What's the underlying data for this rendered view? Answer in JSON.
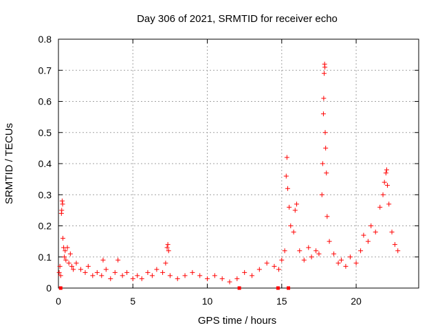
{
  "chart_data": {
    "type": "scatter",
    "title": "Day 306 of 2021, SRMTID for receiver echo",
    "xlabel": "GPS time / hours",
    "ylabel": "SRMTID / TECUs",
    "xlim": [
      0,
      24.2
    ],
    "ylim": [
      0,
      0.8
    ],
    "x_ticks": [
      0,
      5,
      10,
      15,
      20
    ],
    "y_ticks": [
      0,
      0.1,
      0.2,
      0.3,
      0.4,
      0.5,
      0.6,
      0.7,
      0.8
    ],
    "x_tick_labels": [
      "0",
      "5",
      "10",
      "15",
      "20"
    ],
    "y_tick_labels": [
      "0",
      "0.1",
      "0.2",
      "0.3",
      "0.4",
      "0.5",
      "0.6",
      "0.7",
      "0.8"
    ],
    "grid": true,
    "marker": "+",
    "marker_color": "#ff0000",
    "series": [
      {
        "name": "SRMTID",
        "points": [
          [
            0.05,
            0.05
          ],
          [
            0.1,
            0.07
          ],
          [
            0.15,
            0.04
          ],
          [
            0.2,
            0.24
          ],
          [
            0.22,
            0.25
          ],
          [
            0.25,
            0.28
          ],
          [
            0.28,
            0.27
          ],
          [
            0.3,
            0.16
          ],
          [
            0.35,
            0.13
          ],
          [
            0.4,
            0.1
          ],
          [
            0.45,
            0.12
          ],
          [
            0.5,
            0.09
          ],
          [
            0.6,
            0.13
          ],
          [
            0.7,
            0.08
          ],
          [
            0.8,
            0.11
          ],
          [
            0.9,
            0.07
          ],
          [
            1.0,
            0.06
          ],
          [
            1.2,
            0.08
          ],
          [
            1.5,
            0.06
          ],
          [
            1.8,
            0.05
          ],
          [
            2.0,
            0.07
          ],
          [
            2.3,
            0.04
          ],
          [
            2.6,
            0.05
          ],
          [
            2.9,
            0.04
          ],
          [
            3.0,
            0.09
          ],
          [
            3.2,
            0.06
          ],
          [
            3.5,
            0.03
          ],
          [
            3.8,
            0.05
          ],
          [
            4.0,
            0.09
          ],
          [
            4.3,
            0.04
          ],
          [
            4.6,
            0.05
          ],
          [
            5.0,
            0.03
          ],
          [
            5.3,
            0.04
          ],
          [
            5.6,
            0.03
          ],
          [
            6.0,
            0.05
          ],
          [
            6.3,
            0.04
          ],
          [
            6.6,
            0.06
          ],
          [
            7.0,
            0.05
          ],
          [
            7.2,
            0.08
          ],
          [
            7.3,
            0.13
          ],
          [
            7.35,
            0.14
          ],
          [
            7.4,
            0.12
          ],
          [
            7.5,
            0.04
          ],
          [
            8.0,
            0.03
          ],
          [
            8.5,
            0.04
          ],
          [
            9.0,
            0.05
          ],
          [
            9.5,
            0.04
          ],
          [
            10.0,
            0.03
          ],
          [
            10.5,
            0.04
          ],
          [
            11.0,
            0.03
          ],
          [
            11.5,
            0.02
          ],
          [
            12.0,
            0.03
          ],
          [
            12.5,
            0.05
          ],
          [
            13.0,
            0.04
          ],
          [
            13.5,
            0.06
          ],
          [
            14.0,
            0.08
          ],
          [
            14.5,
            0.07
          ],
          [
            14.8,
            0.06
          ],
          [
            15.0,
            0.09
          ],
          [
            15.2,
            0.12
          ],
          [
            15.3,
            0.36
          ],
          [
            15.35,
            0.42
          ],
          [
            15.4,
            0.32
          ],
          [
            15.5,
            0.26
          ],
          [
            15.6,
            0.2
          ],
          [
            15.8,
            0.18
          ],
          [
            15.9,
            0.25
          ],
          [
            16.0,
            0.27
          ],
          [
            16.2,
            0.12
          ],
          [
            16.5,
            0.09
          ],
          [
            16.8,
            0.13
          ],
          [
            17.0,
            0.1
          ],
          [
            17.3,
            0.12
          ],
          [
            17.5,
            0.11
          ],
          [
            17.7,
            0.3
          ],
          [
            17.75,
            0.4
          ],
          [
            17.8,
            0.56
          ],
          [
            17.82,
            0.61
          ],
          [
            17.85,
            0.69
          ],
          [
            17.88,
            0.72
          ],
          [
            17.9,
            0.71
          ],
          [
            17.92,
            0.5
          ],
          [
            17.95,
            0.45
          ],
          [
            18.0,
            0.37
          ],
          [
            18.05,
            0.23
          ],
          [
            18.2,
            0.15
          ],
          [
            18.5,
            0.11
          ],
          [
            18.8,
            0.08
          ],
          [
            19.0,
            0.09
          ],
          [
            19.3,
            0.07
          ],
          [
            19.6,
            0.1
          ],
          [
            20.0,
            0.08
          ],
          [
            20.3,
            0.12
          ],
          [
            20.5,
            0.17
          ],
          [
            20.8,
            0.15
          ],
          [
            21.0,
            0.2
          ],
          [
            21.3,
            0.18
          ],
          [
            21.6,
            0.26
          ],
          [
            21.8,
            0.3
          ],
          [
            21.9,
            0.34
          ],
          [
            22.0,
            0.37
          ],
          [
            22.05,
            0.38
          ],
          [
            22.1,
            0.33
          ],
          [
            22.2,
            0.27
          ],
          [
            22.4,
            0.18
          ],
          [
            22.6,
            0.14
          ],
          [
            22.8,
            0.12
          ]
        ]
      }
    ],
    "gap_markers_x": [
      0.15,
      12.15,
      14.75,
      15.45
    ]
  }
}
